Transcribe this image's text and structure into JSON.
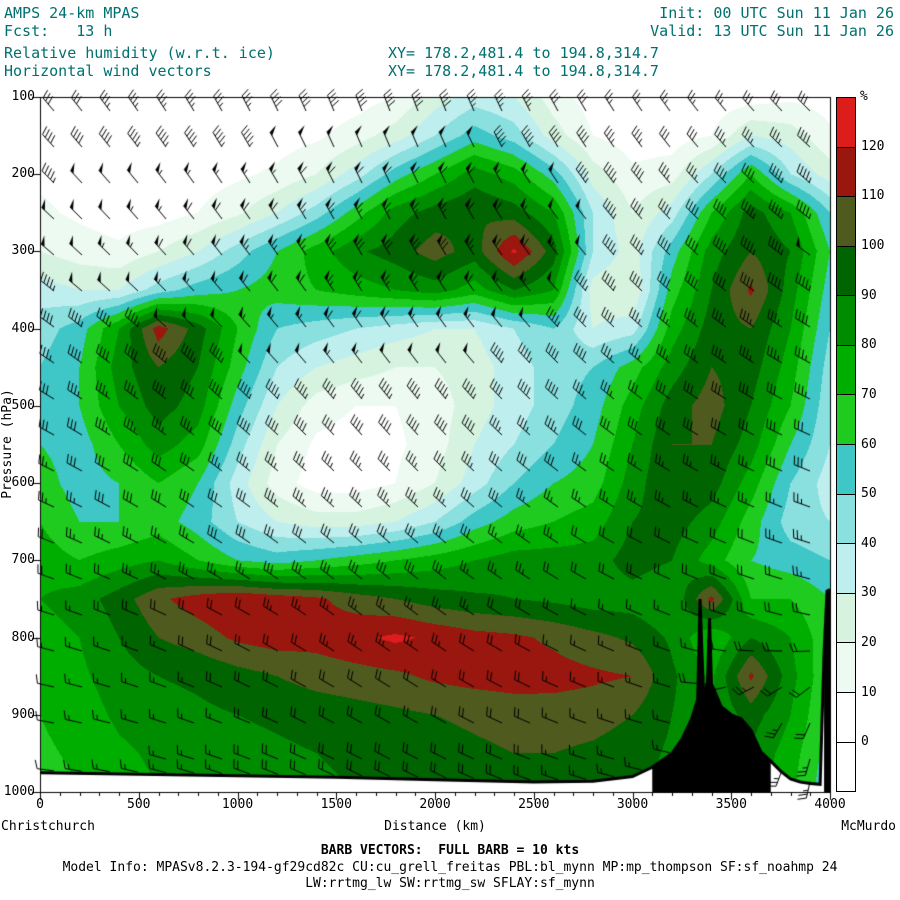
{
  "header": {
    "model": "AMPS 24-km MPAS",
    "fcst": "Fcst:   13 h",
    "init": "Init: 00 UTC Sun 11 Jan 26",
    "valid": "Valid: 13 UTC Sun 11 Jan 26",
    "field_line": "Relative humidity (w.r.t. ice)",
    "vector_line": "Horizontal wind vectors",
    "xy_line1": "XY= 178.2,481.4 to 194.8,314.7",
    "xy_line2": "XY= 178.2,481.4 to 194.8,314.7",
    "text_color": "#007070"
  },
  "footer": {
    "left_station": "Christchurch",
    "right_station": "McMurdo",
    "xlabel": "Distance (km)",
    "barb_note": "BARB VECTORS:  FULL BARB = 10 kts",
    "model_info": "Model Info: MPASv8.2.3-194-gf29cd82c CU:cu_grell_freitas PBL:bl_mynn MP:mp_thompson SF:sf_noahmp 24",
    "physics_info": "LW:rrtmg_lw SW:rrtmg_sw SFLAY:sf_mynn"
  },
  "colorbar": {
    "unit": "%",
    "tick_labels": [
      "0",
      "10",
      "20",
      "30",
      "40",
      "50",
      "60",
      "70",
      "80",
      "90",
      "100",
      "110",
      "120"
    ],
    "segment_colors": [
      "#ffffff",
      "#ffffff",
      "#edfaf1",
      "#d6f3e0",
      "#bfeeee",
      "#8adfdf",
      "#3fc6c6",
      "#1ecb1e",
      "#00ae00",
      "#008c00",
      "#006400",
      "#4f5a1e",
      "#99170e",
      "#dd1c1c"
    ],
    "thresholds": [
      0,
      10,
      20,
      30,
      40,
      50,
      60,
      70,
      80,
      90,
      100,
      110,
      120,
      130
    ]
  },
  "axes": {
    "ylabel": "Pressure (hPa)",
    "x_ticks": [
      0,
      500,
      1000,
      1500,
      2000,
      2500,
      3000,
      3500,
      4000
    ],
    "y_ticks": [
      100,
      200,
      300,
      400,
      500,
      600,
      700,
      800,
      900,
      1000
    ],
    "x_range": [
      0,
      4000
    ],
    "p_range": [
      100,
      1000
    ],
    "x_minor_step": 100,
    "x_major_step": 500
  },
  "chart_data": {
    "type": "heatmap",
    "title": "Relative humidity (w.r.t. ice) cross-section with horizontal wind vectors, Christchurch to McMurdo",
    "xlabel": "Distance (km)",
    "ylabel": "Pressure (hPa)",
    "units": "%",
    "x_km": [
      0,
      200,
      400,
      600,
      800,
      1000,
      1200,
      1400,
      1600,
      1800,
      2000,
      2200,
      2400,
      2600,
      2800,
      3000,
      3200,
      3400,
      3600,
      3800,
      4000
    ],
    "p_hpa": [
      100,
      150,
      200,
      250,
      300,
      350,
      400,
      450,
      500,
      550,
      600,
      650,
      700,
      750,
      800,
      850,
      900,
      950,
      1000
    ],
    "rh_grid": [
      [
        3,
        3,
        3,
        3,
        3,
        3,
        3,
        3,
        5,
        10,
        25,
        35,
        30,
        15,
        5,
        3,
        3,
        3,
        5,
        8,
        5
      ],
      [
        3,
        3,
        3,
        3,
        3,
        3,
        5,
        8,
        15,
        25,
        40,
        55,
        45,
        25,
        10,
        5,
        5,
        10,
        30,
        25,
        12
      ],
      [
        8,
        5,
        3,
        3,
        5,
        8,
        12,
        20,
        35,
        55,
        70,
        85,
        75,
        55,
        25,
        12,
        15,
        40,
        70,
        40,
        25
      ],
      [
        12,
        8,
        5,
        5,
        10,
        18,
        30,
        45,
        65,
        85,
        95,
        100,
        95,
        80,
        40,
        20,
        35,
        70,
        95,
        80,
        50
      ],
      [
        20,
        15,
        12,
        20,
        30,
        45,
        60,
        75,
        88,
        95,
        105,
        95,
        122,
        95,
        40,
        25,
        55,
        85,
        100,
        90,
        60
      ],
      [
        35,
        30,
        30,
        45,
        55,
        60,
        65,
        70,
        75,
        80,
        85,
        75,
        90,
        80,
        25,
        20,
        65,
        90,
        112,
        85,
        55
      ],
      [
        45,
        55,
        80,
        115,
        95,
        70,
        50,
        45,
        40,
        35,
        30,
        30,
        40,
        50,
        30,
        35,
        75,
        95,
        100,
        80,
        50
      ],
      [
        50,
        60,
        85,
        100,
        90,
        65,
        40,
        30,
        25,
        20,
        20,
        25,
        35,
        45,
        50,
        65,
        85,
        100,
        95,
        75,
        45
      ],
      [
        55,
        60,
        80,
        95,
        85,
        55,
        30,
        15,
        10,
        10,
        15,
        25,
        35,
        45,
        55,
        75,
        95,
        105,
        90,
        70,
        42
      ],
      [
        60,
        55,
        70,
        85,
        75,
        45,
        20,
        8,
        5,
        8,
        15,
        30,
        40,
        50,
        60,
        80,
        100,
        100,
        85,
        60,
        40
      ],
      [
        65,
        55,
        60,
        70,
        60,
        35,
        15,
        5,
        5,
        10,
        20,
        35,
        50,
        60,
        65,
        85,
        100,
        95,
        75,
        50,
        35
      ],
      [
        70,
        60,
        60,
        65,
        55,
        40,
        30,
        25,
        25,
        30,
        40,
        55,
        65,
        70,
        75,
        90,
        95,
        85,
        65,
        45,
        40
      ],
      [
        75,
        70,
        75,
        80,
        70,
        60,
        55,
        60,
        65,
        70,
        75,
        80,
        85,
        85,
        85,
        95,
        90,
        75,
        60,
        55,
        50
      ],
      [
        80,
        85,
        95,
        108,
        115,
        120,
        116,
        112,
        105,
        100,
        95,
        92,
        90,
        88,
        85,
        85,
        80,
        113,
        70,
        70,
        60
      ],
      [
        75,
        80,
        90,
        100,
        105,
        112,
        115,
        114,
        118,
        122,
        118,
        114,
        112,
        108,
        103,
        98,
        88,
        70,
        90,
        80,
        62
      ],
      [
        72,
        78,
        85,
        90,
        92,
        96,
        100,
        104,
        106,
        108,
        112,
        114,
        115,
        114,
        112,
        110,
        92,
        78,
        112,
        84,
        60
      ],
      [
        70,
        75,
        82,
        86,
        88,
        90,
        92,
        94,
        96,
        98,
        100,
        102,
        104,
        105,
        104,
        100,
        90,
        80,
        95,
        80,
        58
      ],
      [
        68,
        72,
        78,
        82,
        85,
        86,
        88,
        90,
        92,
        94,
        96,
        98,
        100,
        100,
        98,
        95,
        88,
        82,
        88,
        75,
        55
      ],
      [
        65,
        70,
        75,
        80,
        82,
        84,
        86,
        88,
        90,
        92,
        94,
        95,
        96,
        96,
        95,
        92,
        86,
        80,
        85,
        72,
        52
      ]
    ],
    "wind": {
      "x_km": [
        0,
        400,
        800,
        1200,
        1600,
        2000,
        2400,
        2800,
        3200,
        3600,
        4000
      ],
      "p_hpa": [
        100,
        200,
        300,
        400,
        500,
        600,
        700,
        800,
        900,
        1000
      ],
      "speed_kt": [
        [
          25,
          30,
          30,
          35,
          35,
          35,
          30,
          25,
          20,
          25,
          30
        ],
        [
          45,
          50,
          55,
          55,
          60,
          60,
          55,
          45,
          35,
          40,
          45
        ],
        [
          50,
          55,
          60,
          65,
          70,
          70,
          60,
          50,
          40,
          45,
          50
        ],
        [
          40,
          45,
          50,
          55,
          60,
          55,
          50,
          40,
          35,
          35,
          40
        ],
        [
          30,
          35,
          40,
          45,
          45,
          45,
          40,
          35,
          30,
          30,
          35
        ],
        [
          25,
          30,
          30,
          35,
          35,
          35,
          30,
          25,
          25,
          25,
          30
        ],
        [
          20,
          25,
          25,
          30,
          30,
          30,
          25,
          20,
          20,
          20,
          25
        ],
        [
          15,
          15,
          20,
          20,
          25,
          25,
          20,
          15,
          15,
          20,
          20
        ],
        [
          10,
          15,
          15,
          20,
          20,
          20,
          20,
          15,
          15,
          25,
          20
        ],
        [
          10,
          15,
          15,
          20,
          20,
          20,
          20,
          15,
          15,
          30,
          25
        ]
      ],
      "dir_deg": [
        [
          320,
          325,
          330,
          335,
          340,
          340,
          335,
          330,
          325,
          320,
          315
        ],
        [
          315,
          320,
          325,
          330,
          335,
          335,
          330,
          325,
          320,
          315,
          310
        ],
        [
          310,
          315,
          320,
          325,
          330,
          330,
          325,
          320,
          315,
          310,
          305
        ],
        [
          305,
          310,
          315,
          320,
          325,
          325,
          320,
          315,
          310,
          305,
          300
        ],
        [
          300,
          305,
          310,
          315,
          320,
          320,
          315,
          310,
          305,
          300,
          295
        ],
        [
          295,
          300,
          305,
          310,
          315,
          315,
          310,
          305,
          300,
          295,
          290
        ],
        [
          290,
          295,
          300,
          305,
          310,
          310,
          305,
          300,
          295,
          290,
          285
        ],
        [
          285,
          290,
          295,
          300,
          305,
          305,
          300,
          295,
          290,
          285,
          280
        ],
        [
          280,
          285,
          290,
          295,
          300,
          300,
          295,
          290,
          285,
          220,
          200
        ],
        [
          275,
          280,
          285,
          290,
          295,
          295,
          290,
          285,
          280,
          200,
          185
        ]
      ],
      "barb_full_kt": 10
    },
    "terrain": {
      "x_km": [
        0,
        500,
        1000,
        1500,
        2000,
        2500,
        2800,
        3000,
        3100,
        3200,
        3250,
        3300,
        3330,
        3342,
        3360,
        3380,
        3390,
        3400,
        3450,
        3500,
        3550,
        3600,
        3650,
        3700,
        3750,
        3800,
        3850,
        3900,
        3950,
        3970,
        3985,
        4000
      ],
      "p_sfc_hpa": [
        975,
        977,
        979,
        981,
        984,
        987,
        986,
        980,
        968,
        950,
        932,
        905,
        880,
        750,
        878,
        858,
        775,
        860,
        890,
        900,
        905,
        920,
        948,
        960,
        973,
        983,
        987,
        989,
        990,
        820,
        740,
        738
      ]
    }
  }
}
